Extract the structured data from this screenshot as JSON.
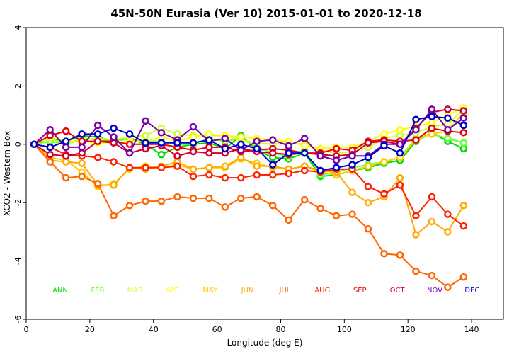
{
  "chart_data": {
    "type": "line",
    "title": "45N-50N Eurasia (Ver 10)   2015-01-01 to 2020-12-18",
    "xlabel": "Longitude (deg E)",
    "ylabel": "XCO2 - Western Box",
    "xlim": [
      0,
      150
    ],
    "ylim": [
      -6,
      4
    ],
    "xticks": [
      0,
      20,
      40,
      60,
      80,
      100,
      120,
      140
    ],
    "yticks": [
      -6,
      -4,
      -2,
      0,
      2,
      4
    ],
    "grid": false,
    "x": [
      2.5,
      7.5,
      12.5,
      17.5,
      22.5,
      27.5,
      32.5,
      37.5,
      42.5,
      47.5,
      52.5,
      57.5,
      62.5,
      67.5,
      72.5,
      77.5,
      82.5,
      87.5,
      92.5,
      97.5,
      102.5,
      107.5,
      112.5,
      117.5,
      122.5,
      127.5,
      132.5,
      137.5
    ],
    "series": [
      {
        "name": "ANN",
        "color": "#00dd00",
        "values": [
          0.0,
          0.2,
          0.1,
          0.3,
          0.25,
          0.1,
          0.2,
          0.0,
          -0.35,
          -0.1,
          0.0,
          0.05,
          -0.15,
          0.3,
          -0.2,
          -0.45,
          -0.5,
          -0.3,
          -1.1,
          -1.05,
          -0.9,
          -0.8,
          -0.65,
          -0.55,
          0.1,
          0.4,
          0.1,
          -0.15
        ]
      },
      {
        "name": "FEB",
        "color": "#66ff33",
        "values": [
          0.0,
          0.1,
          0.0,
          0.2,
          0.15,
          0.1,
          0.2,
          0.1,
          0.1,
          0.0,
          0.0,
          0.2,
          0.1,
          0.2,
          -0.1,
          -0.3,
          -0.4,
          -0.2,
          -1.05,
          -0.95,
          -0.8,
          -0.7,
          -0.6,
          -0.45,
          0.2,
          0.35,
          0.2,
          0.05
        ]
      },
      {
        "name": "MAR",
        "color": "#ccff33",
        "values": [
          0.0,
          0.2,
          0.0,
          0.15,
          0.2,
          0.15,
          0.25,
          0.3,
          0.55,
          0.35,
          0.3,
          0.3,
          0.3,
          0.15,
          0.05,
          0.0,
          0.05,
          0.0,
          -0.2,
          -0.3,
          -0.25,
          -0.1,
          0.2,
          0.3,
          0.4,
          0.6,
          0.7,
          1.2
        ]
      },
      {
        "name": "APR",
        "color": "#ffff00",
        "values": [
          0.0,
          0.3,
          0.1,
          0.1,
          0.05,
          0.05,
          0.1,
          0.1,
          0.25,
          0.1,
          0.25,
          0.35,
          0.3,
          0.25,
          0.2,
          0.15,
          0.1,
          -0.05,
          -0.15,
          -0.1,
          -0.1,
          0.1,
          0.35,
          0.5,
          0.6,
          0.75,
          1.0,
          1.25
        ]
      },
      {
        "name": "MAY",
        "color": "#ffcc00",
        "values": [
          0.0,
          -0.45,
          -0.55,
          -0.95,
          -1.45,
          -1.35,
          -0.85,
          -0.75,
          -0.8,
          -0.7,
          -0.85,
          -0.8,
          -0.8,
          -0.5,
          -0.65,
          -0.8,
          -0.85,
          -0.75,
          -0.95,
          -1.05,
          -0.9,
          -0.75,
          -0.6,
          -0.45,
          0.15,
          0.35,
          0.45,
          1.1
        ]
      },
      {
        "name": "JUN",
        "color": "#ffaa00",
        "values": [
          0.0,
          -0.55,
          -0.6,
          -0.65,
          -1.4,
          -1.4,
          -0.8,
          -0.85,
          -0.75,
          -0.6,
          -0.85,
          -0.8,
          -0.75,
          -0.45,
          -0.75,
          -0.75,
          -0.85,
          -0.75,
          -0.9,
          -0.95,
          -1.65,
          -2.0,
          -1.8,
          -1.15,
          -3.1,
          -2.65,
          -3.0,
          -2.1
        ]
      },
      {
        "name": "JUL",
        "color": "#ff6600",
        "values": [
          0.0,
          -0.6,
          -1.15,
          -1.1,
          -1.35,
          -2.45,
          -2.1,
          -1.95,
          -1.95,
          -1.8,
          -1.85,
          -1.85,
          -2.15,
          -1.85,
          -1.8,
          -2.1,
          -2.6,
          -1.9,
          -2.2,
          -2.45,
          -2.4,
          -2.9,
          -3.75,
          -3.8,
          -4.35,
          -4.5,
          -4.9,
          -4.55
        ]
      },
      {
        "name": "AUG",
        "color": "#ff2200",
        "values": [
          0.0,
          -0.1,
          -0.35,
          -0.4,
          -0.45,
          -0.6,
          -0.8,
          -0.8,
          -0.8,
          -0.75,
          -1.1,
          -1.05,
          -1.15,
          -1.15,
          -1.05,
          -1.05,
          -1.0,
          -0.9,
          -0.95,
          -0.85,
          -0.85,
          -1.45,
          -1.7,
          -1.4,
          -2.45,
          -1.8,
          -2.4,
          -2.8
        ]
      },
      {
        "name": "SEP",
        "color": "#ee0000",
        "values": [
          0.0,
          0.3,
          0.45,
          0.1,
          0.1,
          0.1,
          0.0,
          0.0,
          0.0,
          -0.1,
          -0.2,
          -0.1,
          -0.1,
          -0.25,
          -0.2,
          -0.15,
          -0.2,
          -0.3,
          -0.3,
          -0.15,
          -0.2,
          0.1,
          0.15,
          0.1,
          0.15,
          0.55,
          0.45,
          0.4
        ]
      },
      {
        "name": "OCT",
        "color": "#cc0033",
        "values": [
          0.0,
          -0.35,
          -0.4,
          -0.3,
          0.1,
          0.05,
          -0.3,
          -0.15,
          -0.05,
          -0.4,
          -0.25,
          -0.3,
          -0.3,
          -0.15,
          -0.25,
          -0.3,
          -0.35,
          -0.3,
          -0.35,
          -0.4,
          -0.35,
          0.05,
          0.1,
          0.0,
          0.55,
          1.1,
          1.2,
          1.15
        ]
      },
      {
        "name": "NOV",
        "color": "#7700aa",
        "values": [
          0.0,
          0.5,
          -0.1,
          -0.1,
          0.65,
          0.25,
          -0.3,
          0.8,
          0.4,
          0.15,
          0.6,
          0.1,
          0.2,
          -0.2,
          0.1,
          0.15,
          -0.05,
          0.2,
          -0.4,
          -0.55,
          -0.4,
          -0.4,
          0.0,
          0.0,
          0.5,
          1.2,
          0.5,
          0.9
        ]
      },
      {
        "name": "DEC",
        "color": "#0000cc",
        "values": [
          0.0,
          -0.1,
          0.1,
          0.35,
          0.35,
          0.55,
          0.35,
          0.05,
          0.05,
          0.05,
          0.05,
          0.15,
          -0.15,
          0.0,
          -0.15,
          -0.7,
          -0.3,
          -0.3,
          -0.9,
          -0.8,
          -0.7,
          -0.45,
          -0.05,
          -0.3,
          0.85,
          0.95,
          0.9,
          0.65
        ]
      }
    ]
  }
}
